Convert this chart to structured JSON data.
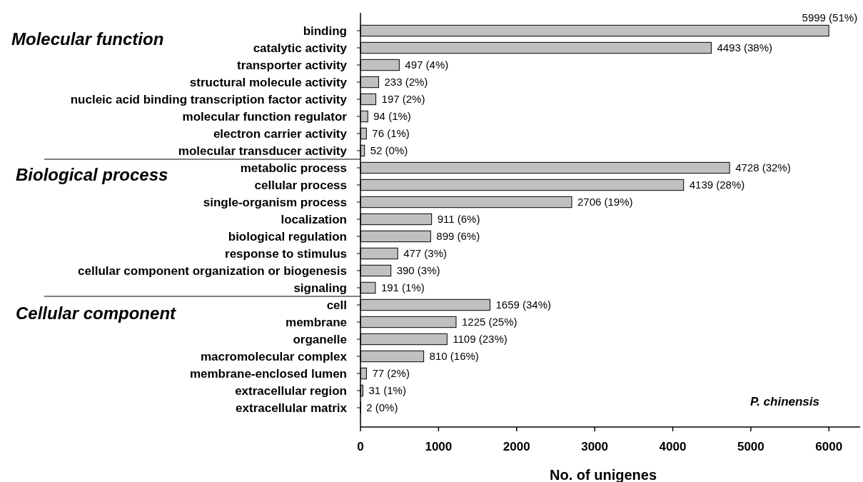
{
  "chart_data": {
    "type": "bar",
    "orientation": "horizontal",
    "xlabel": "No. of unigenes",
    "categories": [
      "binding",
      "catalytic activity",
      "transporter activity",
      "structural molecule activity",
      "nucleic acid binding transcription factor activity",
      "molecular function regulator",
      "electron carrier activity",
      "molecular transducer activity",
      "metabolic process",
      "cellular process",
      "single-organism process",
      "localization",
      "biological regulation",
      "response to stimulus",
      "cellular component organization or biogenesis",
      "signaling",
      "cell",
      "membrane",
      "organelle",
      "macromolecular complex",
      "membrane-enclosed lumen",
      "extracellular region",
      "extracellular matrix"
    ],
    "values": [
      5999,
      4493,
      497,
      233,
      197,
      94,
      76,
      52,
      4728,
      4139,
      2706,
      911,
      899,
      477,
      390,
      191,
      1659,
      1225,
      1109,
      810,
      77,
      31,
      2
    ],
    "value_labels": [
      "5999 (51%)",
      "4493 (38%)",
      "497 (4%)",
      "233 (2%)",
      "197 (2%)",
      "94 (1%)",
      "76 (1%)",
      "52 (0%)",
      "4728 (32%)",
      "4139 (28%)",
      "2706 (19%)",
      "911 (6%)",
      "899 (6%)",
      "477 (3%)",
      "390 (3%)",
      "191 (1%)",
      "1659 (34%)",
      "1225 (25%)",
      "1109 (23%)",
      "810 (16%)",
      "77 (2%)",
      "31 (1%)",
      "2 (0%)"
    ],
    "color": "#c0c0c0",
    "xlim": [
      0,
      6400
    ],
    "xticks": [
      0,
      1000,
      2000,
      3000,
      4000,
      5000,
      6000
    ],
    "annotations": [
      "Molecular function",
      "Biological process",
      "Cellular component",
      "P. chinensis"
    ]
  }
}
